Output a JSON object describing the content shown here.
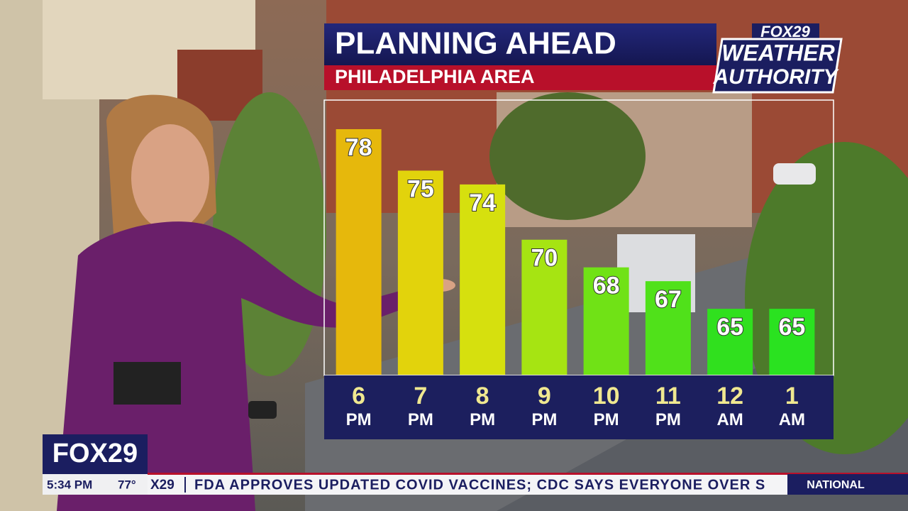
{
  "chart_data": {
    "type": "bar",
    "title": "PLANNING AHEAD",
    "subtitle": "PHILADELPHIA AREA",
    "categories": [
      "6 PM",
      "7 PM",
      "8 PM",
      "9 PM",
      "10 PM",
      "11 PM",
      "12 AM",
      "1 AM"
    ],
    "values": [
      78,
      75,
      74,
      70,
      68,
      67,
      65,
      65
    ],
    "colors": [
      "#e6b80c",
      "#e2d30c",
      "#d6e00e",
      "#a6e412",
      "#70e216",
      "#50e11a",
      "#30e01e",
      "#2ae220"
    ]
  },
  "logo": {
    "brand": "FOX29",
    "line1": "WEATHER",
    "line2": "AUTHORITY"
  },
  "lower_third": {
    "brand": "FOX29",
    "time": "5:34 PM",
    "temperature": "77°",
    "ticker_brand": "X29",
    "ticker": "FDA APPROVES UPDATED COVID VACCINES; CDC SAYS EVERYONE OVER S",
    "ticker_tag": "NATIONAL"
  }
}
